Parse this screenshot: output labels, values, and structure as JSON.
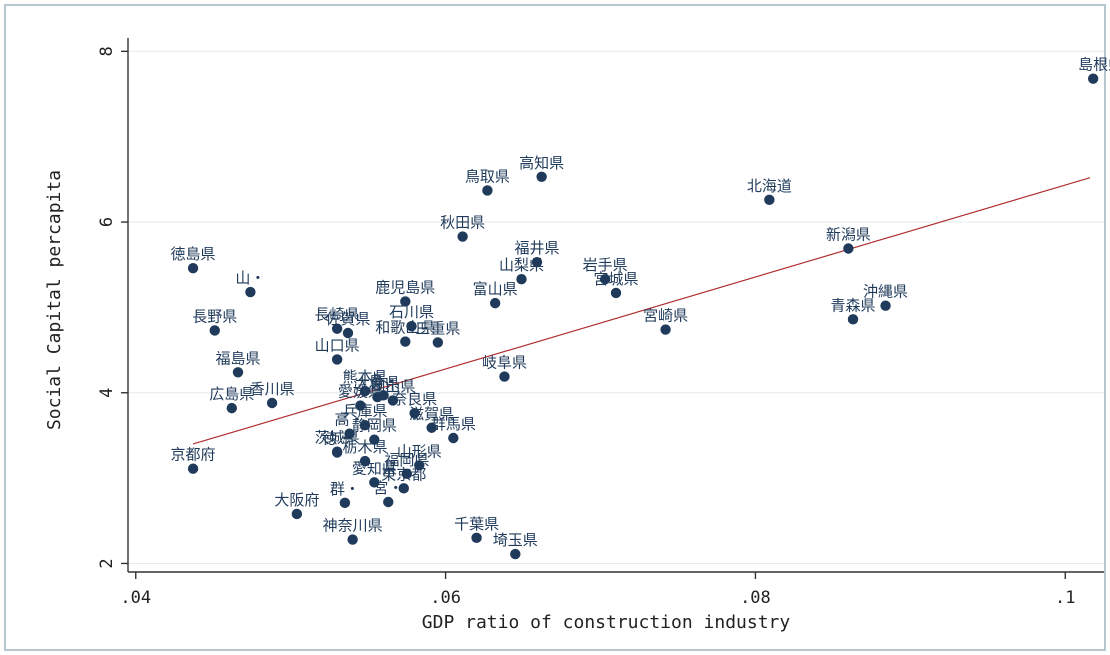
{
  "chart_data": {
    "type": "scatter",
    "xlabel": "GDP ratio of construction industry",
    "ylabel": "Social Capital percapita",
    "xlim": [
      0.0395,
      0.1025
    ],
    "ylim": [
      1.9,
      8.25
    ],
    "grid": true,
    "x_ticks": [
      0.04,
      0.06,
      0.08,
      0.1
    ],
    "x_tick_labels": [
      ".04",
      ".06",
      ".08",
      ".1"
    ],
    "y_ticks": [
      2,
      4,
      6,
      8
    ],
    "y_tick_labels": [
      "2",
      "4",
      "6",
      "8"
    ],
    "fit_line": {
      "x": [
        0.0437,
        0.1016
      ],
      "y": [
        3.4,
        6.52
      ],
      "color": "#b03030"
    },
    "marker_color": "#1f3a5a",
    "points": [
      {
        "label": "島根県",
        "x": 0.1018,
        "y": 7.68
      },
      {
        "label": "高知県",
        "x": 0.0662,
        "y": 6.53
      },
      {
        "label": "鳥取県",
        "x": 0.0627,
        "y": 6.37
      },
      {
        "label": "北海道",
        "x": 0.0809,
        "y": 6.26
      },
      {
        "label": "秋田県",
        "x": 0.0611,
        "y": 5.83
      },
      {
        "label": "新潟県",
        "x": 0.086,
        "y": 5.69
      },
      {
        "label": "徳島県",
        "x": 0.0437,
        "y": 5.46
      },
      {
        "label": "福井県",
        "x": 0.0659,
        "y": 5.53
      },
      {
        "label": "山梨県",
        "x": 0.0649,
        "y": 5.33
      },
      {
        "label": "岩手県",
        "x": 0.0703,
        "y": 5.33
      },
      {
        "label": "宮城県",
        "x": 0.071,
        "y": 5.17
      },
      {
        "label": "山・",
        "x": 0.0474,
        "y": 5.18
      },
      {
        "label": "鹿児島県",
        "x": 0.0574,
        "y": 5.07
      },
      {
        "label": "富山県",
        "x": 0.0632,
        "y": 5.05
      },
      {
        "label": "沖縄県",
        "x": 0.0884,
        "y": 5.02
      },
      {
        "label": "青森県",
        "x": 0.0863,
        "y": 4.86
      },
      {
        "label": "長野県",
        "x": 0.0451,
        "y": 4.73
      },
      {
        "label": "宮崎県",
        "x": 0.0742,
        "y": 4.74
      },
      {
        "label": "長崎県",
        "x": 0.053,
        "y": 4.75
      },
      {
        "label": "石川県",
        "x": 0.0578,
        "y": 4.78
      },
      {
        "label": "和歌山県",
        "x": 0.0574,
        "y": 4.6
      },
      {
        "label": "三重県",
        "x": 0.0595,
        "y": 4.59
      },
      {
        "label": "佐賀県",
        "x": 0.0537,
        "y": 4.7
      },
      {
        "label": "山口県",
        "x": 0.053,
        "y": 4.39
      },
      {
        "label": "福島県",
        "x": 0.0466,
        "y": 4.24
      },
      {
        "label": "岐阜県",
        "x": 0.0638,
        "y": 4.19
      },
      {
        "label": "熊本県",
        "x": 0.0548,
        "y": 4.02
      },
      {
        "label": "香川県",
        "x": 0.0488,
        "y": 3.88
      },
      {
        "label": "広島県",
        "x": 0.0462,
        "y": 3.82
      },
      {
        "label": "大分県",
        "x": 0.0556,
        "y": 3.95
      },
      {
        "label": "岡山県",
        "x": 0.0566,
        "y": 3.91
      },
      {
        "label": "愛媛県",
        "x": 0.0545,
        "y": 3.85
      },
      {
        "label": "奈良県",
        "x": 0.058,
        "y": 3.76
      },
      {
        "label": "滋賀県",
        "x": 0.0591,
        "y": 3.59
      },
      {
        "label": "兵庫県",
        "x": 0.0548,
        "y": 3.62
      },
      {
        "label": "茨城県",
        "x": 0.053,
        "y": 3.31
      },
      {
        "label": "静岡県",
        "x": 0.0554,
        "y": 3.45
      },
      {
        "label": "群馬県",
        "x": 0.0605,
        "y": 3.47
      },
      {
        "label": "栃木県",
        "x": 0.0548,
        "y": 3.2
      },
      {
        "label": "山形県",
        "x": 0.0583,
        "y": 3.15
      },
      {
        "label": "京都府",
        "x": 0.0437,
        "y": 3.11
      },
      {
        "label": "福岡県",
        "x": 0.0575,
        "y": 3.05
      },
      {
        "label": "愛知県",
        "x": 0.0554,
        "y": 2.95
      },
      {
        "label": "東京都",
        "x": 0.0573,
        "y": 2.88
      },
      {
        "label": "大阪府",
        "x": 0.0504,
        "y": 2.58
      },
      {
        "label": "神奈川県",
        "x": 0.054,
        "y": 2.28
      },
      {
        "label": "千葉県",
        "x": 0.062,
        "y": 2.3
      },
      {
        "label": "埼玉県",
        "x": 0.0645,
        "y": 2.11
      },
      {
        "label": "群・",
        "x": 0.0535,
        "y": 2.71
      },
      {
        "label": "宮・",
        "x": 0.0563,
        "y": 2.72
      },
      {
        "label": "徳・",
        "x": 0.053,
        "y": 3.3
      },
      {
        "label": "高・",
        "x": 0.0538,
        "y": 3.52
      },
      {
        "label": "鳥・",
        "x": 0.056,
        "y": 3.97
      }
    ]
  }
}
